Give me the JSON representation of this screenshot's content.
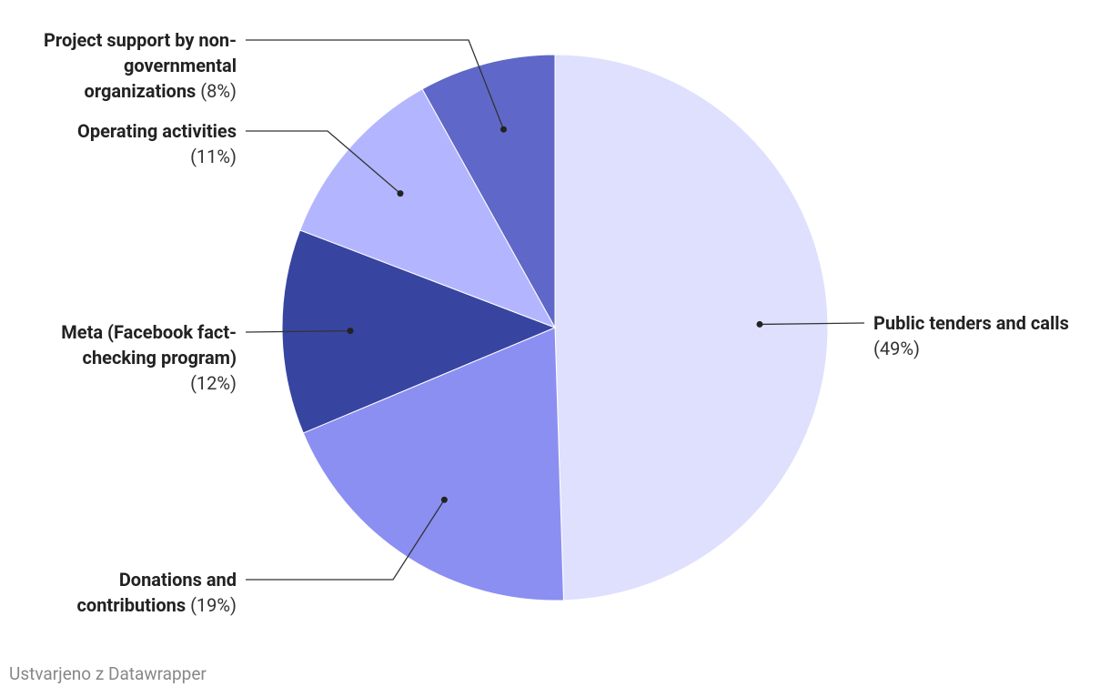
{
  "chart_data": {
    "type": "pie",
    "categories": [
      "Public tenders and calls",
      "Donations and contributions",
      "Meta (Facebook fact-checking program)",
      "Operating activities",
      "Project support by non-governmental organizations"
    ],
    "values": [
      49,
      19,
      12,
      11,
      8
    ],
    "value_labels": [
      "(49%)",
      "(19%)",
      "(12%)",
      "(11%)",
      "(8%)"
    ],
    "colors": [
      "#dfe0fd",
      "#8b8ff2",
      "#3745a0",
      "#b3b6fe",
      "#5f68c8"
    ],
    "credit": "Ustvarjeno z Datawrapper"
  }
}
